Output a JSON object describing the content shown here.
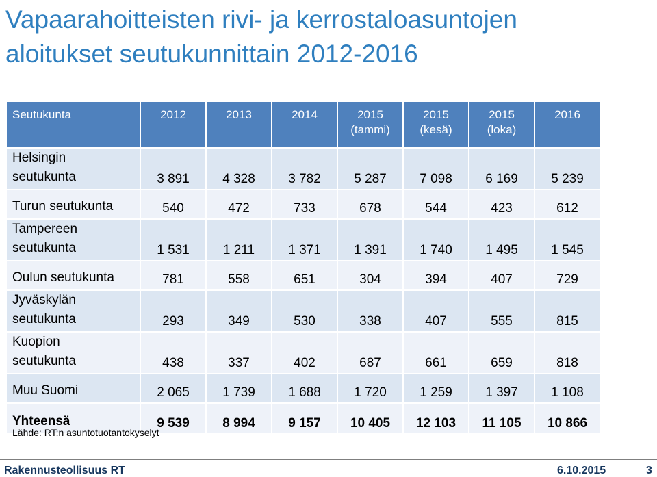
{
  "title": {
    "line1": "Vapaarahoitteisten rivi- ja kerrostaloasuntojen",
    "line2": "aloitukset seutukunnittain 2012-2016"
  },
  "table": {
    "headers": [
      {
        "line1": "Seutukunta",
        "line2": ""
      },
      {
        "line1": "2012",
        "line2": ""
      },
      {
        "line1": "2013",
        "line2": ""
      },
      {
        "line1": "2014",
        "line2": ""
      },
      {
        "line1": "2015",
        "line2": "(tammi)"
      },
      {
        "line1": "2015",
        "line2": "(kesä)"
      },
      {
        "line1": "2015",
        "line2": "(loka)"
      },
      {
        "line1": "2016",
        "line2": ""
      }
    ],
    "rows": [
      {
        "label1": "Helsingin",
        "label2": "seutukunta",
        "values": [
          "3 891",
          "4 328",
          "3 782",
          "5 287",
          "7 098",
          "6 169",
          "5 239"
        ]
      },
      {
        "label1": "Turun seutukunta",
        "label2": "",
        "values": [
          "540",
          "472",
          "733",
          "678",
          "544",
          "423",
          "612"
        ]
      },
      {
        "label1": "Tampereen",
        "label2": "seutukunta",
        "values": [
          "1 531",
          "1 211",
          "1 371",
          "1 391",
          "1 740",
          "1 495",
          "1 545"
        ]
      },
      {
        "label1": "Oulun seutukunta",
        "label2": "",
        "values": [
          "781",
          "558",
          "651",
          "304",
          "394",
          "407",
          "729"
        ]
      },
      {
        "label1": "Jyväskylän",
        "label2": "seutukunta",
        "values": [
          "293",
          "349",
          "530",
          "338",
          "407",
          "555",
          "815"
        ]
      },
      {
        "label1": "Kuopion",
        "label2": "seutukunta",
        "values": [
          "438",
          "337",
          "402",
          "687",
          "661",
          "659",
          "818"
        ]
      },
      {
        "label1": "Muu Suomi",
        "label2": "",
        "values": [
          "2 065",
          "1 739",
          "1 688",
          "1 720",
          "1 259",
          "1 397",
          "1 108"
        ]
      },
      {
        "label1": "Yhteensä",
        "label2": "",
        "values": [
          "9 539",
          "8 994",
          "9 157",
          "10 405",
          "12 103",
          "11 105",
          "10 866"
        ]
      }
    ]
  },
  "source": "Lähde: RT:n asuntotuotantokyselyt",
  "footer": {
    "org": "Rakennusteollisuus RT",
    "date": "6.10.2015",
    "page": "3"
  }
}
